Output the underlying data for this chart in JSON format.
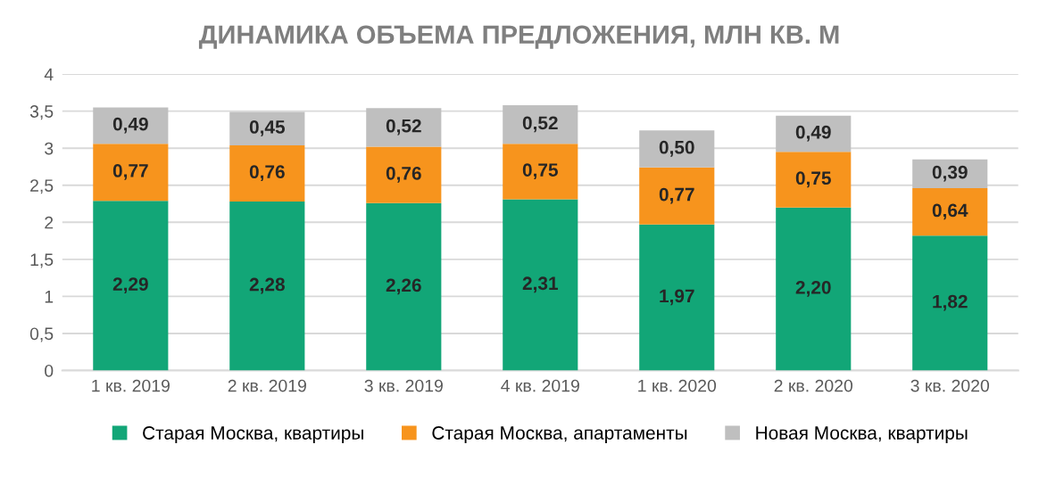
{
  "chart_data": {
    "type": "bar",
    "title": "ДИНАМИКА ОБЪЕМА ПРЕДЛОЖЕНИЯ, МЛН КВ. М",
    "stacked": true,
    "grid": "y",
    "legend": "bottom",
    "categories": [
      "1 кв. 2019",
      "2 кв. 2019",
      "3 кв. 2019",
      "4 кв. 2019",
      "1 кв. 2020",
      "2 кв. 2020",
      "3 кв. 2020"
    ],
    "ylim": [
      0,
      4
    ],
    "yticks": [
      0,
      {
        "value": 0.5,
        "label": "0,5"
      },
      1,
      {
        "value": 1.5,
        "label": "1,5"
      },
      2,
      {
        "value": 2.5,
        "label": "2,5"
      },
      3,
      {
        "value": 3.5,
        "label": "3,5"
      },
      4
    ],
    "series": [
      {
        "name": "Старая Москва, квартиры",
        "color": "#12a677",
        "values": [
          2.29,
          2.28,
          2.26,
          2.31,
          1.97,
          2.2,
          1.82
        ],
        "value_labels": [
          "2,29",
          "2,28",
          "2,26",
          "2,31",
          "1,97",
          "2,20",
          "1,82"
        ]
      },
      {
        "name": "Старая Москва, апартаменты",
        "color": "#f7941d",
        "values": [
          0.77,
          0.76,
          0.76,
          0.75,
          0.77,
          0.75,
          0.64
        ],
        "value_labels": [
          "0,77",
          "0,76",
          "0,76",
          "0,75",
          "0,77",
          "0,75",
          "0,64"
        ]
      },
      {
        "name": "Новая Москва, квартиры",
        "color": "#bfbfbf",
        "values": [
          0.49,
          0.45,
          0.52,
          0.52,
          0.5,
          0.49,
          0.39
        ],
        "value_labels": [
          "0,49",
          "0,45",
          "0,52",
          "0,52",
          "0,50",
          "0,49",
          "0,39"
        ]
      }
    ]
  }
}
